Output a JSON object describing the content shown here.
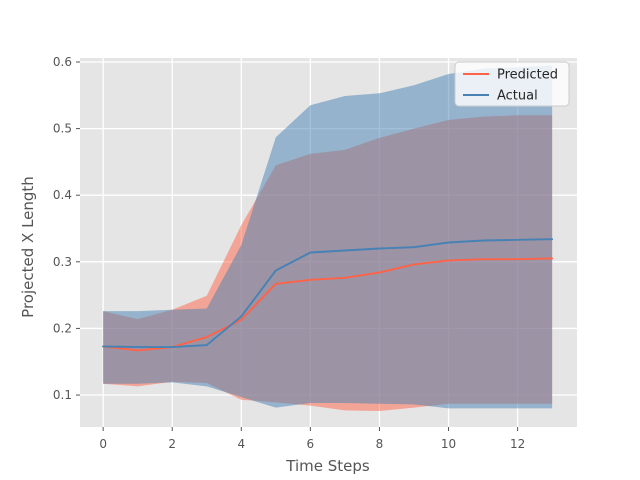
{
  "chart_data": {
    "type": "line",
    "title": "",
    "xlabel": "Time Steps",
    "ylabel": "Projected X Length",
    "x": [
      0,
      1,
      2,
      3,
      4,
      5,
      6,
      7,
      8,
      9,
      10,
      11,
      12,
      13
    ],
    "series": [
      {
        "name": "Predicted",
        "color": "#FF6347",
        "values": [
          0.173,
          0.167,
          0.172,
          0.187,
          0.213,
          0.267,
          0.273,
          0.276,
          0.284,
          0.296,
          0.302,
          0.304,
          0.304,
          0.305
        ],
        "band_upper": [
          0.226,
          0.214,
          0.228,
          0.249,
          0.355,
          0.445,
          0.462,
          0.468,
          0.486,
          0.5,
          0.513,
          0.518,
          0.52,
          0.52
        ],
        "band_lower": [
          0.117,
          0.113,
          0.12,
          0.118,
          0.093,
          0.089,
          0.084,
          0.077,
          0.076,
          0.081,
          0.087,
          0.087,
          0.087,
          0.087
        ]
      },
      {
        "name": "Actual",
        "color": "#4682B4",
        "values": [
          0.173,
          0.172,
          0.172,
          0.175,
          0.218,
          0.287,
          0.314,
          0.317,
          0.32,
          0.322,
          0.329,
          0.332,
          0.333,
          0.334
        ],
        "band_upper": [
          0.226,
          0.226,
          0.228,
          0.23,
          0.325,
          0.487,
          0.535,
          0.549,
          0.553,
          0.565,
          0.582,
          0.59,
          0.592,
          0.595
        ],
        "band_lower": [
          0.117,
          0.117,
          0.119,
          0.113,
          0.097,
          0.081,
          0.088,
          0.088,
          0.087,
          0.086,
          0.08,
          0.08,
          0.08,
          0.08
        ]
      }
    ],
    "band_alpha": 0.5,
    "x_ticks": [
      "0",
      "2",
      "4",
      "6",
      "8",
      "10",
      "12"
    ],
    "x_tick_values": [
      0,
      2,
      4,
      6,
      8,
      10,
      12
    ],
    "y_ticks": [
      "0.1",
      "0.2",
      "0.3",
      "0.4",
      "0.5",
      "0.6"
    ],
    "y_tick_values": [
      0.1,
      0.2,
      0.3,
      0.4,
      0.5,
      0.6
    ],
    "xlim": [
      -0.67,
      13.72
    ],
    "ylim": [
      0.052,
      0.606
    ],
    "grid": true,
    "legend": {
      "position": "upper right",
      "items": [
        "Predicted",
        "Actual"
      ]
    },
    "colors": {
      "plot_bg": "#E5E5E5",
      "fig_bg": "#FFFFFF",
      "grid": "#FFFFFF",
      "tick": "#555555",
      "tick_text": "#555555",
      "label_text": "#555555",
      "legend_text": "#262626",
      "legend_bg": "rgba(255,255,255,0.8)",
      "legend_border": "#CCCCCC"
    }
  }
}
